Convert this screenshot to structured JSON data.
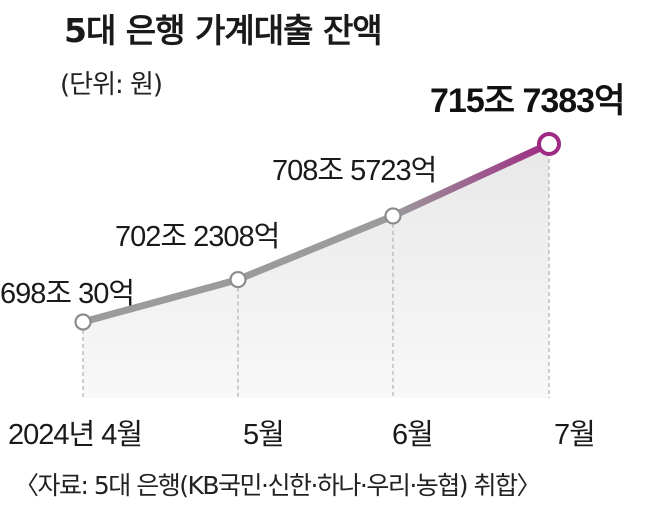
{
  "title": "5대 은행 가계대출 잔액",
  "unit": "(단위: 원)",
  "source": "〈자료: 5대 은행(KB국민·신한·하나·우리·농협) 취합〉",
  "colors": {
    "line": "#9b9b9b",
    "highlight": "#9e2a84",
    "area": "#eeeeee",
    "marker_fill": "#ffffff"
  },
  "chart_data": {
    "type": "line",
    "title": "5대 은행 가계대출 잔액",
    "ylabel": "(단위: 원)",
    "categories": [
      "2024년 4월",
      "5월",
      "6월",
      "7월"
    ],
    "values": [
      698.003,
      702.2308,
      708.5723,
      715.7383
    ],
    "data_labels": [
      "698조 30억",
      "702조 2308억",
      "708조 5723억",
      "715조 7383억"
    ],
    "grid": false,
    "legend": "none"
  }
}
